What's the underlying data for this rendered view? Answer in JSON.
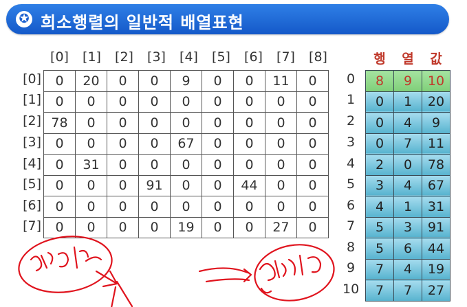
{
  "title": "희소행렬의 일반적 배열표현",
  "title_icon": "star-in-circle-icon",
  "matrix": {
    "col_labels": [
      "[0]",
      "[1]",
      "[2]",
      "[3]",
      "[4]",
      "[5]",
      "[6]",
      "[7]",
      "[8]"
    ],
    "row_labels": [
      "[0]",
      "[1]",
      "[2]",
      "[3]",
      "[4]",
      "[5]",
      "[6]",
      "[7]"
    ],
    "rows": [
      [
        "0",
        "20",
        "0",
        "0",
        "9",
        "0",
        "0",
        "11",
        "0"
      ],
      [
        "0",
        "0",
        "0",
        "0",
        "0",
        "0",
        "0",
        "0",
        "0"
      ],
      [
        "78",
        "0",
        "0",
        "0",
        "0",
        "0",
        "0",
        "0",
        "0"
      ],
      [
        "0",
        "0",
        "0",
        "0",
        "67",
        "0",
        "0",
        "0",
        "0"
      ],
      [
        "0",
        "31",
        "0",
        "0",
        "0",
        "0",
        "0",
        "0",
        "0"
      ],
      [
        "0",
        "0",
        "0",
        "91",
        "0",
        "0",
        "44",
        "0",
        "0"
      ],
      [
        "0",
        "0",
        "0",
        "0",
        "0",
        "0",
        "0",
        "0",
        "0"
      ],
      [
        "0",
        "0",
        "0",
        "0",
        "19",
        "0",
        "0",
        "27",
        "0"
      ]
    ]
  },
  "triples": {
    "headers": [
      "행",
      "열",
      "값"
    ],
    "indices": [
      "0",
      "1",
      "2",
      "3",
      "4",
      "5",
      "6",
      "7",
      "8",
      "9",
      "10"
    ],
    "rows": [
      [
        "8",
        "9",
        "10"
      ],
      [
        "0",
        "1",
        "20"
      ],
      [
        "0",
        "4",
        "9"
      ],
      [
        "0",
        "7",
        "11"
      ],
      [
        "2",
        "0",
        "78"
      ],
      [
        "3",
        "4",
        "67"
      ],
      [
        "4",
        "1",
        "31"
      ],
      [
        "5",
        "3",
        "91"
      ],
      [
        "5",
        "6",
        "44"
      ],
      [
        "7",
        "4",
        "19"
      ],
      [
        "7",
        "7",
        "27"
      ]
    ],
    "colors": {
      "meta_row": "#8fd88a",
      "body_top": "#a6dcee",
      "body_bottom": "#57b3cf",
      "header_text": "#c0392b"
    }
  },
  "annotation_color": "#e0141e"
}
